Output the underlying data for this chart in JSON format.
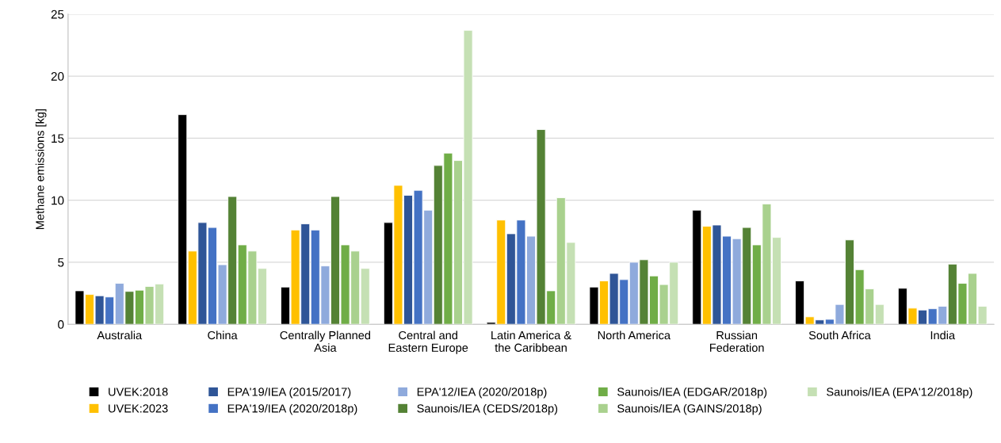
{
  "chart_data": {
    "type": "bar",
    "ylabel": "Methane emissions [kg]",
    "categories": [
      "Australia",
      "China",
      "Centrally Planned\nAsia",
      "Central and\nEastern Europe",
      "Latin America &\nthe Caribbean",
      "North America",
      "Russian\nFederation",
      "South Africa",
      "India"
    ],
    "ylim": [
      0,
      25
    ],
    "yticks": [
      0,
      5,
      10,
      15,
      20,
      25
    ],
    "grid": "y",
    "legend": "bottom",
    "series": [
      {
        "name": "UVEK:2018",
        "color": "#000000",
        "values": [
          2.7,
          16.9,
          3.0,
          8.2,
          0.15,
          3.0,
          9.2,
          3.5,
          2.9
        ]
      },
      {
        "name": "UVEK:2023",
        "color": "#ffc000",
        "values": [
          2.4,
          5.9,
          7.6,
          11.2,
          8.4,
          3.5,
          7.9,
          0.6,
          1.3
        ]
      },
      {
        "name": "EPA'19/IEA (2015/2017)",
        "color": "#2f5597",
        "values": [
          2.3,
          8.2,
          8.1,
          10.4,
          7.3,
          4.1,
          8.0,
          0.35,
          1.15
        ]
      },
      {
        "name": "EPA'19/IEA (2020/2018p)",
        "color": "#4472c4",
        "values": [
          2.2,
          7.8,
          7.6,
          10.8,
          8.4,
          3.6,
          7.1,
          0.4,
          1.25
        ]
      },
      {
        "name": "EPA'12/IEA (2020/2018p)",
        "color": "#8faadc",
        "values": [
          3.3,
          4.8,
          4.7,
          9.2,
          7.1,
          5.0,
          6.9,
          1.6,
          1.45
        ]
      },
      {
        "name": "Saunois/IEA (CEDS/2018p)",
        "color": "#548235",
        "values": [
          2.65,
          10.3,
          10.3,
          12.8,
          15.7,
          5.2,
          7.8,
          6.8,
          4.85
        ]
      },
      {
        "name": "Saunois/IEA (EDGAR/2018p)",
        "color": "#70ad47",
        "values": [
          2.75,
          6.4,
          6.4,
          13.8,
          2.7,
          3.9,
          6.4,
          4.4,
          3.3
        ]
      },
      {
        "name": "Saunois/IEA (GAINS/2018p)",
        "color": "#a9d18e",
        "values": [
          3.05,
          5.9,
          5.9,
          13.2,
          10.2,
          3.2,
          9.7,
          2.85,
          4.1
        ]
      },
      {
        "name": "Saunois/IEA (EPA'12/2018p)",
        "color": "#c5e0b4",
        "values": [
          3.25,
          4.5,
          4.5,
          23.7,
          6.6,
          5.0,
          7.0,
          1.6,
          1.45
        ]
      }
    ]
  }
}
